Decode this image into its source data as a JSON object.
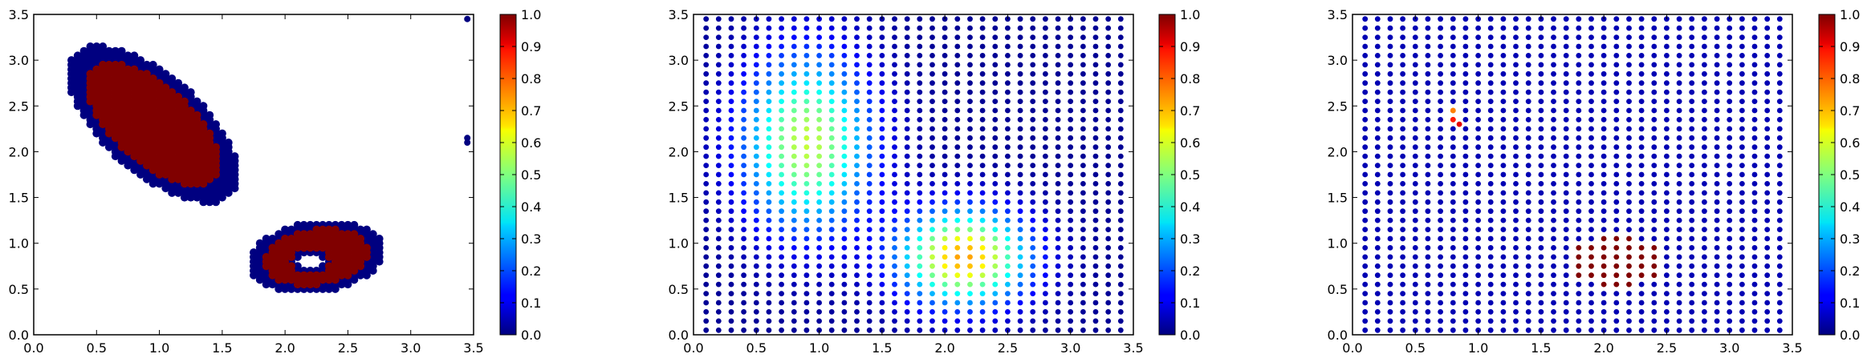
{
  "chart_data": [
    {
      "type": "scatter",
      "colormap": "jet",
      "xlim": [
        0.0,
        3.5
      ],
      "ylim": [
        0.0,
        3.5
      ],
      "xticks": [
        "0.0",
        "0.5",
        "1.0",
        "1.5",
        "2.0",
        "2.5",
        "3.0",
        "3.5"
      ],
      "yticks": [
        "0.0",
        "0.5",
        "1.0",
        "1.5",
        "2.0",
        "2.5",
        "3.0",
        "3.5"
      ],
      "colorbar": {
        "range": [
          0.0,
          1.0
        ],
        "ticks": [
          "0.0",
          "0.1",
          "0.2",
          "0.3",
          "0.4",
          "0.5",
          "0.6",
          "0.7",
          "0.8",
          "0.9",
          "1.0"
        ]
      },
      "description_of_points": "dense cluster of points in two blobs; value 0 (blue) on rims, 1 (red) inside",
      "blobs": [
        {
          "shape": "ellipse",
          "cx": 0.95,
          "cy": 2.3,
          "rx": 0.45,
          "ry": 1.0,
          "angle_deg": 35,
          "inner_value": 1.0,
          "rim_value": 0.0
        },
        {
          "shape": "ellipse",
          "cx": 2.25,
          "cy": 0.85,
          "rx": 0.55,
          "ry": 0.38,
          "angle_deg": 15,
          "inner_value": 1.0,
          "rim_value": 0.0,
          "hole": {
            "cx": 2.2,
            "cy": 0.8,
            "r": 0.1
          }
        }
      ],
      "isolated_points": [
        {
          "x": 3.45,
          "y": 3.45,
          "value": 0.0
        },
        {
          "x": 3.45,
          "y": 2.15,
          "value": 0.0
        },
        {
          "x": 3.45,
          "y": 2.1,
          "value": 0.0
        }
      ]
    },
    {
      "type": "scatter",
      "colormap": "jet",
      "xlim": [
        0.0,
        3.5
      ],
      "ylim": [
        0.0,
        3.5
      ],
      "xticks": [
        "0.0",
        "0.5",
        "1.0",
        "1.5",
        "2.0",
        "2.5",
        "3.0",
        "3.5"
      ],
      "yticks": [
        "0.0",
        "0.5",
        "1.0",
        "1.5",
        "2.0",
        "2.5",
        "3.0",
        "3.5"
      ],
      "colorbar": {
        "range": [
          0.0,
          1.0
        ],
        "ticks": [
          "0.0",
          "0.1",
          "0.2",
          "0.3",
          "0.4",
          "0.5",
          "0.6",
          "0.7",
          "0.8",
          "0.9",
          "1.0"
        ]
      },
      "grid": {
        "x_start": 0.1,
        "x_step": 0.1,
        "x_count": 34,
        "y_start": 0.05,
        "y_step": 0.1,
        "y_count": 35
      },
      "gaussians": [
        {
          "cx": 0.9,
          "cy": 2.1,
          "sx": 0.35,
          "sy": 0.65,
          "amp": 0.55
        },
        {
          "cx": 2.15,
          "cy": 0.85,
          "sx": 0.35,
          "sy": 0.35,
          "amp": 0.7
        }
      ]
    },
    {
      "type": "scatter",
      "colormap": "jet",
      "xlim": [
        0.0,
        3.5
      ],
      "ylim": [
        0.0,
        3.5
      ],
      "xticks": [
        "0.0",
        "0.5",
        "1.0",
        "1.5",
        "2.0",
        "2.5",
        "3.0",
        "3.5"
      ],
      "yticks": [
        "0.0",
        "0.5",
        "1.0",
        "1.5",
        "2.0",
        "2.5",
        "3.0",
        "3.5"
      ],
      "colorbar": {
        "range": [
          0.0,
          1.0
        ],
        "ticks": [
          "0.0",
          "0.1",
          "0.2",
          "0.3",
          "0.4",
          "0.5",
          "0.6",
          "0.7",
          "0.8",
          "0.9",
          "1.0"
        ]
      },
      "grid": {
        "x_start": 0.1,
        "x_step": 0.1,
        "x_count": 34,
        "y_start": 0.05,
        "y_step": 0.1,
        "y_count": 35
      },
      "hot_points": [
        {
          "x": 0.8,
          "y": 2.35,
          "value": 0.85
        },
        {
          "x": 0.8,
          "y": 2.45,
          "value": 0.75
        },
        {
          "x": 0.85,
          "y": 2.3,
          "value": 0.9
        }
      ],
      "hot_region": {
        "cx": 2.1,
        "cy": 0.8,
        "rx": 0.35,
        "ry": 0.3,
        "value": 1.0
      }
    }
  ]
}
